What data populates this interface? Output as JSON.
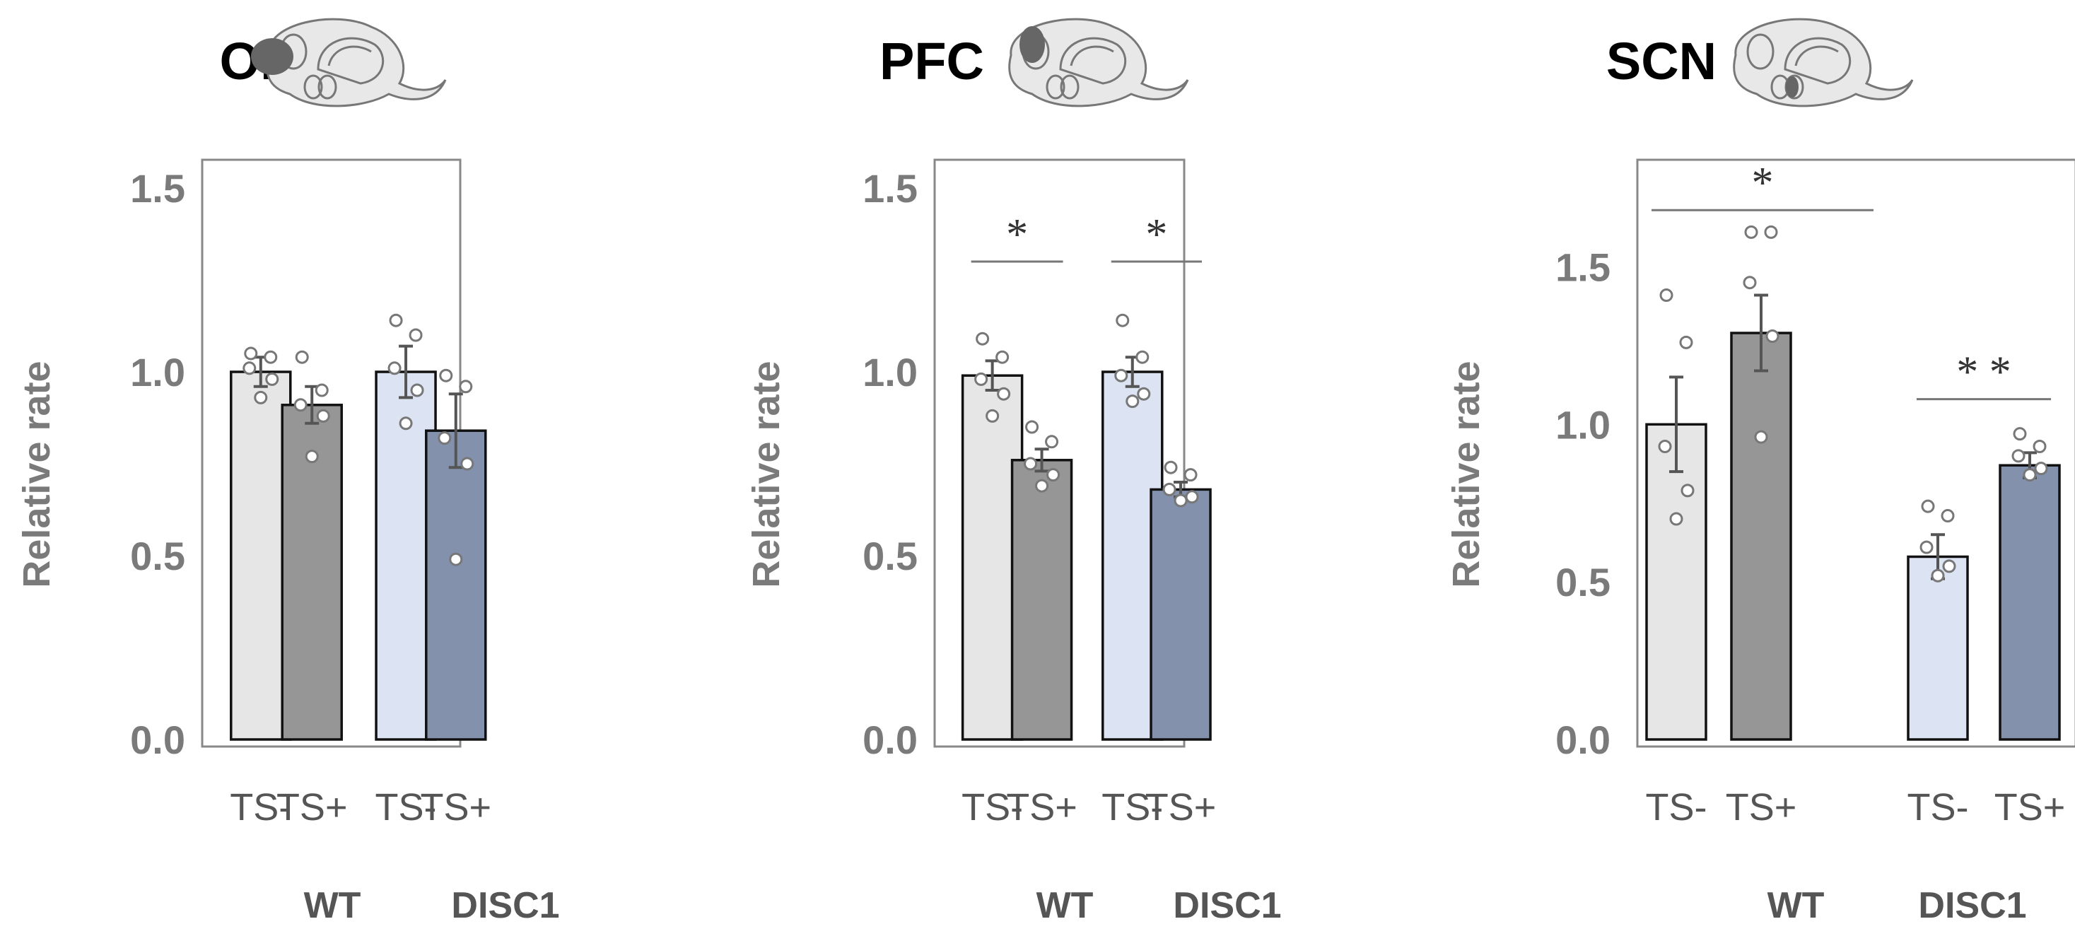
{
  "colors": {
    "wt_ts_minus": "#e6e6e6",
    "wt_ts_plus": "#969696",
    "disc1_ts_minus": "#dce3f2",
    "disc1_ts_plus": "#8391ad",
    "frame": "#888888",
    "error_bar": "#555555",
    "dot": "#777777"
  },
  "chart_data": [
    {
      "type": "bar",
      "title": "OB",
      "ylabel": "Relative rate",
      "ylim": [
        0,
        1.5
      ],
      "yticks": [
        "0.0",
        "0.5",
        "1.0",
        "1.5"
      ],
      "groups": [
        "WT",
        "DISC1"
      ],
      "categories": [
        "TS-",
        "TS+",
        "TS-",
        "TS+"
      ],
      "series": [
        {
          "values": [
            1.0,
            0.91,
            1.0,
            0.84
          ]
        }
      ],
      "errors": [
        0.04,
        0.05,
        0.07,
        0.1
      ],
      "points": [
        [
          1.05,
          1.04,
          1.01,
          0.98,
          0.93
        ],
        [
          1.04,
          0.95,
          0.91,
          0.88,
          0.77
        ],
        [
          1.14,
          1.1,
          1.01,
          0.95,
          0.86
        ],
        [
          0.99,
          0.96,
          0.82,
          0.75,
          0.49
        ]
      ],
      "significance": [],
      "brain_icon": "brain-ob-icon"
    },
    {
      "type": "bar",
      "title": "PFC",
      "ylabel": "Relative rate",
      "ylim": [
        0,
        1.5
      ],
      "yticks": [
        "0.0",
        "0.5",
        "1.0",
        "1.5"
      ],
      "groups": [
        "WT",
        "DISC1"
      ],
      "categories": [
        "TS-",
        "TS+",
        "TS-",
        "TS+"
      ],
      "series": [
        {
          "values": [
            0.99,
            0.76,
            1.0,
            0.68
          ]
        }
      ],
      "errors": [
        0.04,
        0.03,
        0.04,
        0.02
      ],
      "points": [
        [
          1.09,
          1.04,
          0.98,
          0.94,
          0.88
        ],
        [
          0.85,
          0.81,
          0.75,
          0.72,
          0.69
        ],
        [
          1.14,
          1.04,
          0.99,
          0.94,
          0.92
        ],
        [
          0.74,
          0.72,
          0.68,
          0.66,
          0.65
        ]
      ],
      "significance": [
        {
          "from": 0,
          "to": 1,
          "label": "*",
          "y": 1.3
        },
        {
          "from": 2,
          "to": 3,
          "label": "*",
          "y": 1.3
        }
      ],
      "brain_icon": "brain-pfc-icon"
    },
    {
      "type": "bar",
      "title": "SCN",
      "ylabel": "Relative rate",
      "ylim": [
        0,
        1.75
      ],
      "yticks": [
        "0.0",
        "0.5",
        "1.0",
        "1.5"
      ],
      "groups": [
        "WT",
        "DISC1"
      ],
      "categories": [
        "TS-",
        "TS+",
        "TS-",
        "TS+"
      ],
      "series": [
        {
          "values": [
            1.0,
            1.29,
            0.58,
            0.87
          ]
        }
      ],
      "errors": [
        0.15,
        0.12,
        0.07,
        0.04
      ],
      "points": [
        [
          1.41,
          1.26,
          0.93,
          0.79,
          0.7
        ],
        [
          1.61,
          1.61,
          1.45,
          1.28,
          0.96
        ],
        [
          0.74,
          0.71,
          0.61,
          0.55,
          0.52
        ],
        [
          0.97,
          0.93,
          0.9,
          0.86,
          0.84
        ]
      ],
      "significance": [
        {
          "from": 0,
          "to": 1,
          "label": "*",
          "y": 1.68,
          "span_to_center": true
        },
        {
          "from": 2,
          "to": 3,
          "label": "* *",
          "y": 1.08
        }
      ],
      "brain_icon": "brain-scn-icon"
    }
  ]
}
